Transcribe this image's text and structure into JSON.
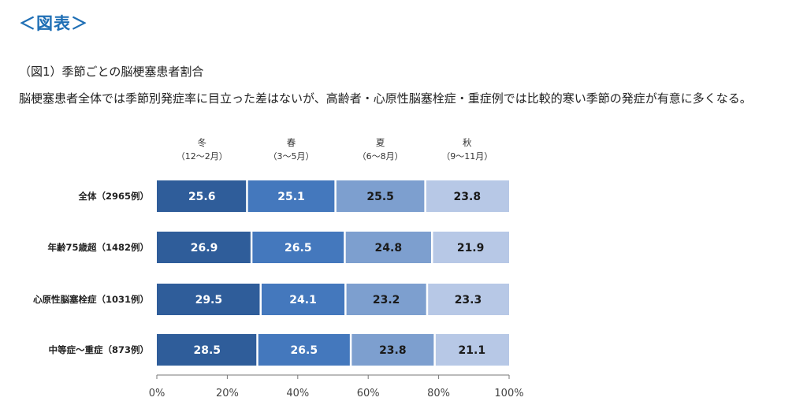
{
  "page": {
    "heading": "＜図表＞",
    "caption": "（図1）季節ごとの脳梗塞患者割合",
    "description": "脳梗塞患者全体では季節別発症率に目立った差はないが、高齢者・心原性脳塞栓症・重症例では比較的寒い季節の発症が有意に多くなる。"
  },
  "chart_data": {
    "type": "bar",
    "orientation": "horizontal-stacked-100",
    "categories": [
      "全体（2965例）",
      "年齢75歳超（1482例）",
      "心原性脳塞栓症（1031例）",
      "中等症～重症（873例）"
    ],
    "series": [
      {
        "name": "冬",
        "sublabel": "（12～2月）",
        "color": "#2f5d9a",
        "label_color": "#ffffff",
        "values": [
          25.6,
          26.9,
          29.5,
          28.5
        ]
      },
      {
        "name": "春",
        "sublabel": "（3～5月）",
        "color": "#4478bd",
        "label_color": "#ffffff",
        "values": [
          25.1,
          26.5,
          24.1,
          26.5
        ]
      },
      {
        "name": "夏",
        "sublabel": "（6～8月）",
        "color": "#7d9fcf",
        "label_color": "#1a1a1a",
        "values": [
          25.5,
          24.8,
          23.2,
          23.8
        ]
      },
      {
        "name": "秋",
        "sublabel": "（9～11月）",
        "color": "#b7c8e6",
        "label_color": "#1a1a1a",
        "values": [
          23.8,
          21.9,
          23.3,
          21.1
        ]
      }
    ],
    "xticks": [
      "0%",
      "20%",
      "40%",
      "60%",
      "80%",
      "100%"
    ],
    "xlim": [
      0,
      100
    ],
    "legend_position": "top",
    "grid": false
  }
}
